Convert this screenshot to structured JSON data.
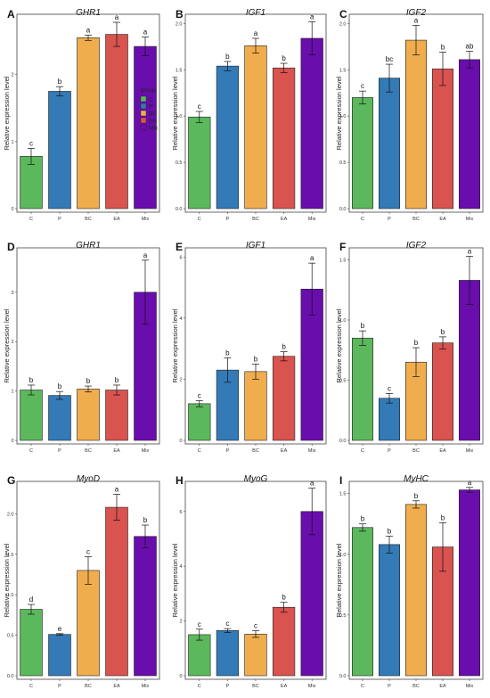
{
  "figure": {
    "colors": {
      "C": "#5cb85c",
      "P": "#337ab7",
      "BC": "#f0ad4e",
      "EA": "#d9534f",
      "Mix": "#6a0dad"
    }
  },
  "chart_data": [
    {
      "panel": "A",
      "type": "bar",
      "title": "GHR1",
      "ylabel": "Relative expression level",
      "xlabel": "",
      "categories": [
        "C",
        "P",
        "BC",
        "EA",
        "Mix"
      ],
      "values": [
        0.78,
        1.75,
        2.55,
        2.6,
        2.42
      ],
      "errors": [
        0.12,
        0.07,
        0.04,
        0.18,
        0.14
      ],
      "letters": [
        "c",
        "b",
        "a",
        "a",
        "a"
      ],
      "ylim": [
        0,
        2.9
      ],
      "yticks": [
        "0",
        "1",
        "2"
      ],
      "legend": {
        "title": "group",
        "entries": [
          "C",
          "P",
          "BC",
          "EA",
          "Mix"
        ],
        "placement": "right"
      }
    },
    {
      "panel": "B",
      "type": "bar",
      "title": "IGF1",
      "ylabel": "Relative expression level",
      "xlabel": "",
      "categories": [
        "C",
        "P",
        "BC",
        "EA",
        "Mix"
      ],
      "values": [
        0.99,
        1.54,
        1.76,
        1.52,
        1.84
      ],
      "errors": [
        0.06,
        0.05,
        0.08,
        0.05,
        0.18
      ],
      "letters": [
        "c",
        "b",
        "a",
        "b",
        "a"
      ],
      "ylim": [
        0,
        2.1
      ],
      "yticks": [
        "0.0",
        "0.5",
        "1.0",
        "1.5",
        "2.0"
      ]
    },
    {
      "panel": "C",
      "type": "bar",
      "title": "IGF2",
      "ylabel": "Relative expression level",
      "xlabel": "",
      "categories": [
        "C",
        "P",
        "BC",
        "EA",
        "Mix"
      ],
      "values": [
        1.2,
        1.41,
        1.82,
        1.51,
        1.61
      ],
      "errors": [
        0.07,
        0.15,
        0.16,
        0.18,
        0.09
      ],
      "letters": [
        "c",
        "bc",
        "a",
        "b",
        "ab"
      ],
      "ylim": [
        0,
        2.1
      ],
      "yticks": [
        "0.0",
        "0.5",
        "1.0",
        "1.5",
        "2.0"
      ]
    },
    {
      "panel": "D",
      "type": "bar",
      "title": "GHR1",
      "ylabel": "Relative expression level",
      "xlabel": "",
      "categories": [
        "C",
        "P",
        "BC",
        "EA",
        "Mix"
      ],
      "values": [
        1.02,
        0.91,
        1.04,
        1.02,
        3.0
      ],
      "errors": [
        0.1,
        0.08,
        0.06,
        0.1,
        0.65
      ],
      "letters": [
        "b",
        "b",
        "b",
        "b",
        "a"
      ],
      "ylim": [
        0,
        3.9
      ],
      "yticks": [
        "0",
        "1",
        "2",
        "3"
      ]
    },
    {
      "panel": "E",
      "type": "bar",
      "title": "IGF1",
      "ylabel": "Relative expression level",
      "xlabel": "",
      "categories": [
        "C",
        "P",
        "BC",
        "EA",
        "Mix"
      ],
      "values": [
        1.2,
        2.3,
        2.25,
        2.75,
        4.95
      ],
      "errors": [
        0.1,
        0.4,
        0.25,
        0.15,
        0.85
      ],
      "letters": [
        "c",
        "b",
        "b",
        "b",
        "a"
      ],
      "ylim": [
        0,
        6.3
      ],
      "yticks": [
        "0",
        "2",
        "4",
        "6"
      ]
    },
    {
      "panel": "F",
      "type": "bar",
      "title": "IGF2",
      "ylabel": "Relative expression level",
      "xlabel": "",
      "categories": [
        "C",
        "P",
        "BC",
        "EA",
        "Mix"
      ],
      "values": [
        0.85,
        0.35,
        0.65,
        0.81,
        1.33
      ],
      "errors": [
        0.06,
        0.04,
        0.12,
        0.05,
        0.2
      ],
      "letters": [
        "b",
        "c",
        "b",
        "b",
        "a"
      ],
      "ylim": [
        0,
        1.6
      ],
      "yticks": [
        "0.0",
        "0.5",
        "1.0",
        "1.5"
      ]
    },
    {
      "panel": "G",
      "type": "bar",
      "title": "MyoD",
      "ylabel": "Relative expression level",
      "xlabel": "",
      "categories": [
        "C",
        "P",
        "BC",
        "EA",
        "Mix"
      ],
      "values": [
        0.82,
        0.51,
        1.3,
        2.08,
        1.72
      ],
      "errors": [
        0.06,
        0.01,
        0.17,
        0.16,
        0.14
      ],
      "letters": [
        "d",
        "e",
        "c",
        "a",
        "b"
      ],
      "ylim": [
        0,
        2.4
      ],
      "yticks": [
        "0.0",
        "0.5",
        "1.0",
        "1.5",
        "2.0"
      ]
    },
    {
      "panel": "H",
      "type": "bar",
      "title": "MyoG",
      "ylabel": "Relative expression level",
      "xlabel": "",
      "categories": [
        "C",
        "P",
        "BC",
        "EA",
        "Mix"
      ],
      "values": [
        1.5,
        1.65,
        1.52,
        2.5,
        6.0
      ],
      "errors": [
        0.2,
        0.07,
        0.12,
        0.18,
        0.85
      ],
      "letters": [
        "c",
        "c",
        "c",
        "b",
        "a"
      ],
      "ylim": [
        0,
        7.1
      ],
      "yticks": [
        "0",
        "2",
        "4",
        "6"
      ]
    },
    {
      "panel": "I",
      "type": "bar",
      "title": "MyHC",
      "ylabel": "Relative expression level",
      "xlabel": "",
      "categories": [
        "C",
        "P",
        "BC",
        "EA",
        "Mix"
      ],
      "values": [
        1.22,
        1.08,
        1.41,
        1.06,
        1.53
      ],
      "errors": [
        0.03,
        0.07,
        0.03,
        0.2,
        0.02
      ],
      "letters": [
        "b",
        "b",
        "b",
        "b",
        "a"
      ],
      "ylim": [
        0,
        1.6
      ],
      "yticks": [
        "0.0",
        "0.5",
        "1.0",
        "1.5"
      ]
    }
  ]
}
